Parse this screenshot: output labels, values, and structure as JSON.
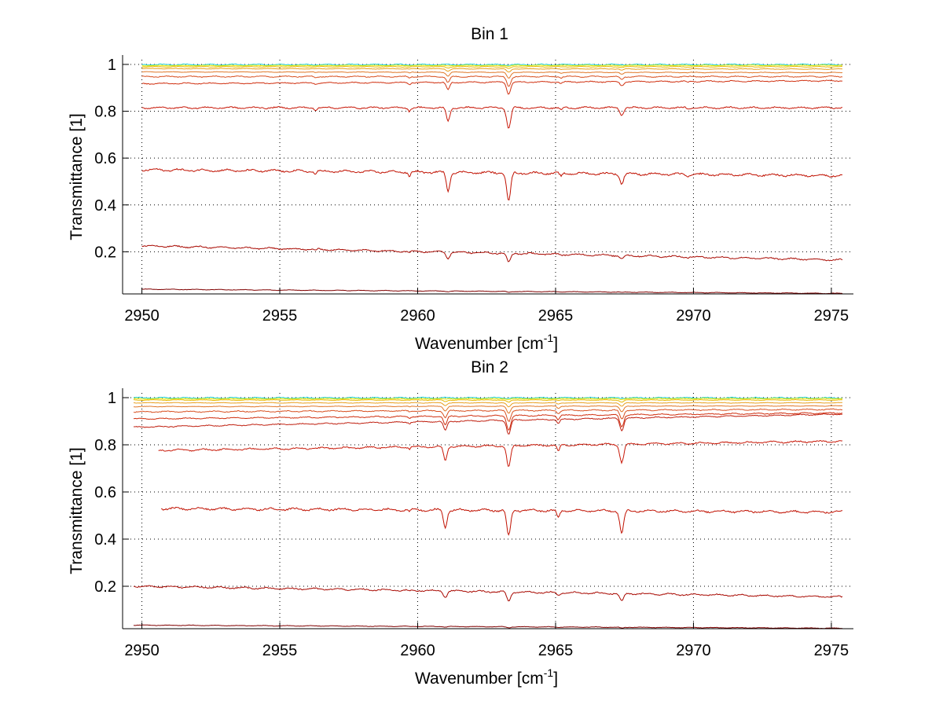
{
  "chart_data": [
    {
      "type": "line",
      "title": "Bin 1",
      "xlabel": "Wavenumber [cm",
      "xlabel_sup": "-1",
      "xlabel_end": "]",
      "ylabel": "Transmittance [1]",
      "xlim": [
        2949.3,
        2975.8
      ],
      "ylim": [
        0.02,
        1.02
      ],
      "xticks": [
        2950,
        2955,
        2960,
        2965,
        2970,
        2975
      ],
      "yticks": [
        0.2,
        0.4,
        0.6,
        0.8,
        1
      ],
      "ytick_labels": [
        "0.2",
        "0.4",
        "0.6",
        "0.8",
        "1"
      ],
      "grid": true,
      "x_range": [
        2950.0,
        2975.4
      ],
      "lines": [
        {
          "color": "#1fd0d0",
          "base_start": 0.999,
          "base_end": 0.999,
          "noise": 0.002,
          "depth": 0.0
        },
        {
          "color": "#e8e800",
          "base_start": 0.995,
          "base_end": 0.996,
          "noise": 0.001,
          "depth": 0.004
        },
        {
          "color": "#e6b800",
          "base_start": 0.99,
          "base_end": 0.99,
          "noise": 0.001,
          "depth": 0.008
        },
        {
          "color": "#e8a020",
          "base_start": 0.982,
          "base_end": 0.98,
          "noise": 0.001,
          "depth": 0.015
        },
        {
          "color": "#e07828",
          "base_start": 0.968,
          "base_end": 0.965,
          "noise": 0.001,
          "depth": 0.025
        },
        {
          "color": "#d85020",
          "base_start": 0.948,
          "base_end": 0.948,
          "noise": 0.002,
          "depth": 0.04
        },
        {
          "color": "#d03010",
          "base_start": 0.918,
          "base_end": 0.93,
          "noise": 0.002,
          "depth": 0.05
        },
        {
          "color": "#c81808",
          "base_start": 0.815,
          "base_end": 0.815,
          "noise": 0.003,
          "depth": 0.09
        },
        {
          "color": "#c01000",
          "base_start": 0.55,
          "base_end": 0.525,
          "noise": 0.004,
          "depth": 0.12
        },
        {
          "color": "#a80800",
          "base_start": 0.225,
          "base_end": 0.165,
          "noise": 0.003,
          "depth": 0.04
        },
        {
          "color": "#800000",
          "base_start": 0.04,
          "base_end": 0.022,
          "noise": 0.001,
          "depth": 0.004
        }
      ],
      "dips": [
        {
          "x": 2959.7,
          "w": 0.06,
          "s": 0.15
        },
        {
          "x": 2961.1,
          "w": 0.09,
          "s": 0.65
        },
        {
          "x": 2963.3,
          "w": 0.1,
          "s": 1.0
        },
        {
          "x": 2965.2,
          "w": 0.07,
          "s": 0.12
        },
        {
          "x": 2967.4,
          "w": 0.09,
          "s": 0.35
        },
        {
          "x": 2956.3,
          "w": 0.06,
          "s": 0.12
        },
        {
          "x": 2969.8,
          "w": 0.06,
          "s": 0.08
        }
      ]
    },
    {
      "type": "line",
      "title": "Bin 2",
      "xlabel": "Wavenumber [cm",
      "xlabel_sup": "-1",
      "xlabel_end": "]",
      "ylabel": "Transmittance [1]",
      "xlim": [
        2949.3,
        2975.8
      ],
      "ylim": [
        0.02,
        1.02
      ],
      "xticks": [
        2950,
        2955,
        2960,
        2965,
        2970,
        2975
      ],
      "yticks": [
        0.2,
        0.4,
        0.6,
        0.8,
        1
      ],
      "ytick_labels": [
        "0.2",
        "0.4",
        "0.6",
        "0.8",
        "1"
      ],
      "grid": true,
      "x_range": [
        2949.7,
        2975.4
      ],
      "lines": [
        {
          "color": "#1fd0d0",
          "base_start": 0.999,
          "base_end": 0.999,
          "noise": 0.002,
          "depth": 0.0
        },
        {
          "color": "#e8e800",
          "base_start": 0.995,
          "base_end": 0.996,
          "noise": 0.001,
          "depth": 0.004
        },
        {
          "color": "#e6b800",
          "base_start": 0.99,
          "base_end": 0.99,
          "noise": 0.001,
          "depth": 0.01
        },
        {
          "color": "#e8a020",
          "base_start": 0.978,
          "base_end": 0.978,
          "noise": 0.001,
          "depth": 0.018
        },
        {
          "color": "#e07828",
          "base_start": 0.962,
          "base_end": 0.965,
          "noise": 0.001,
          "depth": 0.03
        },
        {
          "color": "#d85020",
          "base_start": 0.94,
          "base_end": 0.95,
          "noise": 0.002,
          "depth": 0.045
        },
        {
          "color": "#d03010",
          "base_start": 0.91,
          "base_end": 0.935,
          "noise": 0.002,
          "depth": 0.06
        },
        {
          "color": "#c02010",
          "base_start": 0.875,
          "base_end": 0.93,
          "noise": 0.002,
          "depth": 0.06
        },
        {
          "color": "#c81808",
          "base_start": 0.775,
          "base_end": 0.815,
          "noise": 0.003,
          "depth": 0.09,
          "x_start": 2950.6
        },
        {
          "color": "#c01000",
          "base_start": 0.53,
          "base_end": 0.515,
          "noise": 0.004,
          "depth": 0.11,
          "x_start": 2950.7
        },
        {
          "color": "#a80800",
          "base_start": 0.2,
          "base_end": 0.155,
          "noise": 0.003,
          "depth": 0.04
        },
        {
          "color": "#800000",
          "base_start": 0.035,
          "base_end": 0.022,
          "noise": 0.001,
          "depth": 0.004
        }
      ],
      "dips": [
        {
          "x": 2961.0,
          "w": 0.09,
          "s": 0.65
        },
        {
          "x": 2963.3,
          "w": 0.1,
          "s": 1.0
        },
        {
          "x": 2965.1,
          "w": 0.07,
          "s": 0.3
        },
        {
          "x": 2967.4,
          "w": 0.1,
          "s": 0.85
        },
        {
          "x": 2959.7,
          "w": 0.05,
          "s": 0.1
        }
      ]
    }
  ]
}
